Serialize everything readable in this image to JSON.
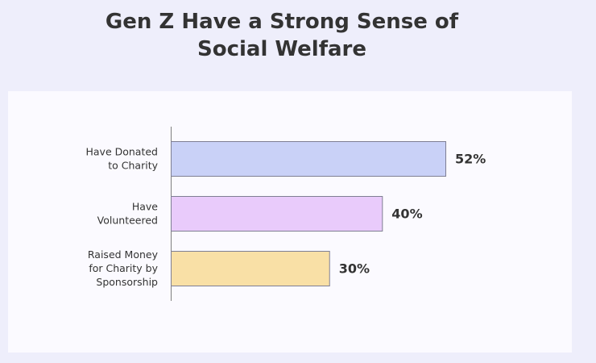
{
  "header": {
    "title_line1": "Gen Z Have a Strong Sense of",
    "title_line2": "Social Welfare"
  },
  "chart_data": {
    "type": "bar",
    "orientation": "horizontal",
    "title": "Gen Z Have a Strong Sense of Social Welfare",
    "xlabel": "",
    "ylabel": "",
    "xlim": [
      0,
      60
    ],
    "grid": false,
    "categories": [
      [
        "Have Donated",
        "to Charity"
      ],
      [
        "Have",
        "Volunteered"
      ],
      [
        "Raised Money",
        "for Charity by",
        "Sponsorship"
      ]
    ],
    "values": [
      52,
      40,
      30
    ],
    "value_labels": [
      "52%",
      "40%",
      "30%"
    ],
    "bar_colors": [
      "#c9d1f7",
      "#e9cbfb",
      "#f9e0a6"
    ],
    "bar_stroke_color": "#7f7f93"
  }
}
